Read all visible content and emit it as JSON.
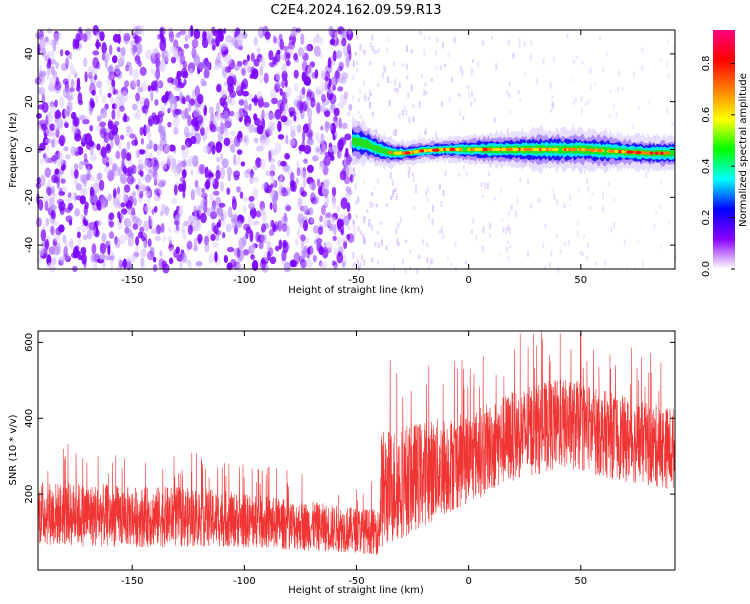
{
  "title": "C2E4.2024.162.09.59.R13",
  "chart_data": [
    {
      "type": "heatmap",
      "xlabel": "Height of straight line (km)",
      "ylabel": "Frequency (Hz)",
      "xlim": [
        -192,
        92
      ],
      "ylim": [
        -50,
        50
      ],
      "xticks": [
        -150,
        -100,
        -50,
        0,
        50
      ],
      "yticks": [
        -40,
        -20,
        0,
        20,
        40
      ],
      "noise_region_x": [
        -192,
        -52
      ],
      "line_ridge": {
        "x": [
          -52,
          -46,
          -40,
          -34,
          -28,
          -20,
          -10,
          0,
          10,
          20,
          30,
          40,
          50,
          60,
          70,
          80,
          92
        ],
        "y": [
          3.5,
          2.5,
          0,
          -1.5,
          -1.5,
          -0.5,
          0,
          0,
          0,
          0,
          0,
          0,
          0,
          -0.5,
          -1,
          -1.5,
          -1.5
        ],
        "halfwidth_hz": [
          4,
          3.5,
          3,
          2.5,
          2,
          2,
          2,
          2.5,
          3,
          3,
          3.5,
          3.5,
          3.5,
          3.5,
          3,
          3,
          3
        ]
      },
      "colorbar": {
        "label": "Normalized spectral amplitude",
        "range": [
          0,
          0.93
        ],
        "ticks": [
          0.0,
          0.2,
          0.4,
          0.6,
          0.8
        ],
        "tick_labels": [
          "0.0",
          "0.2",
          "0.4",
          "0.6",
          "0.8"
        ],
        "colors": [
          "#ffffff",
          "#8a00ff",
          "#0000ff",
          "#00ffff",
          "#00ff00",
          "#ffff00",
          "#ff8000",
          "#ff0000",
          "#ff0080"
        ]
      }
    },
    {
      "type": "line",
      "xlabel": "Height of straight line (km)",
      "ylabel": "SNR (10 * v/v)",
      "xlim": [
        -192,
        92
      ],
      "ylim": [
        0,
        630
      ],
      "xticks": [
        -150,
        -100,
        -50,
        0,
        50
      ],
      "yticks": [
        200,
        400,
        600
      ],
      "color": "#f03333",
      "envelope": {
        "x": [
          -192,
          -170,
          -150,
          -130,
          -110,
          -90,
          -70,
          -50,
          -40,
          -39,
          -20,
          0,
          20,
          40,
          50,
          60,
          80,
          92
        ],
        "mean": [
          150,
          145,
          140,
          140,
          135,
          125,
          115,
          105,
          100,
          210,
          255,
          295,
          355,
          385,
          380,
          360,
          330,
          320
        ],
        "amplitude": [
          85,
          85,
          80,
          80,
          75,
          70,
          65,
          60,
          60,
          160,
          140,
          120,
          120,
          120,
          120,
          115,
          110,
          110
        ]
      }
    }
  ]
}
